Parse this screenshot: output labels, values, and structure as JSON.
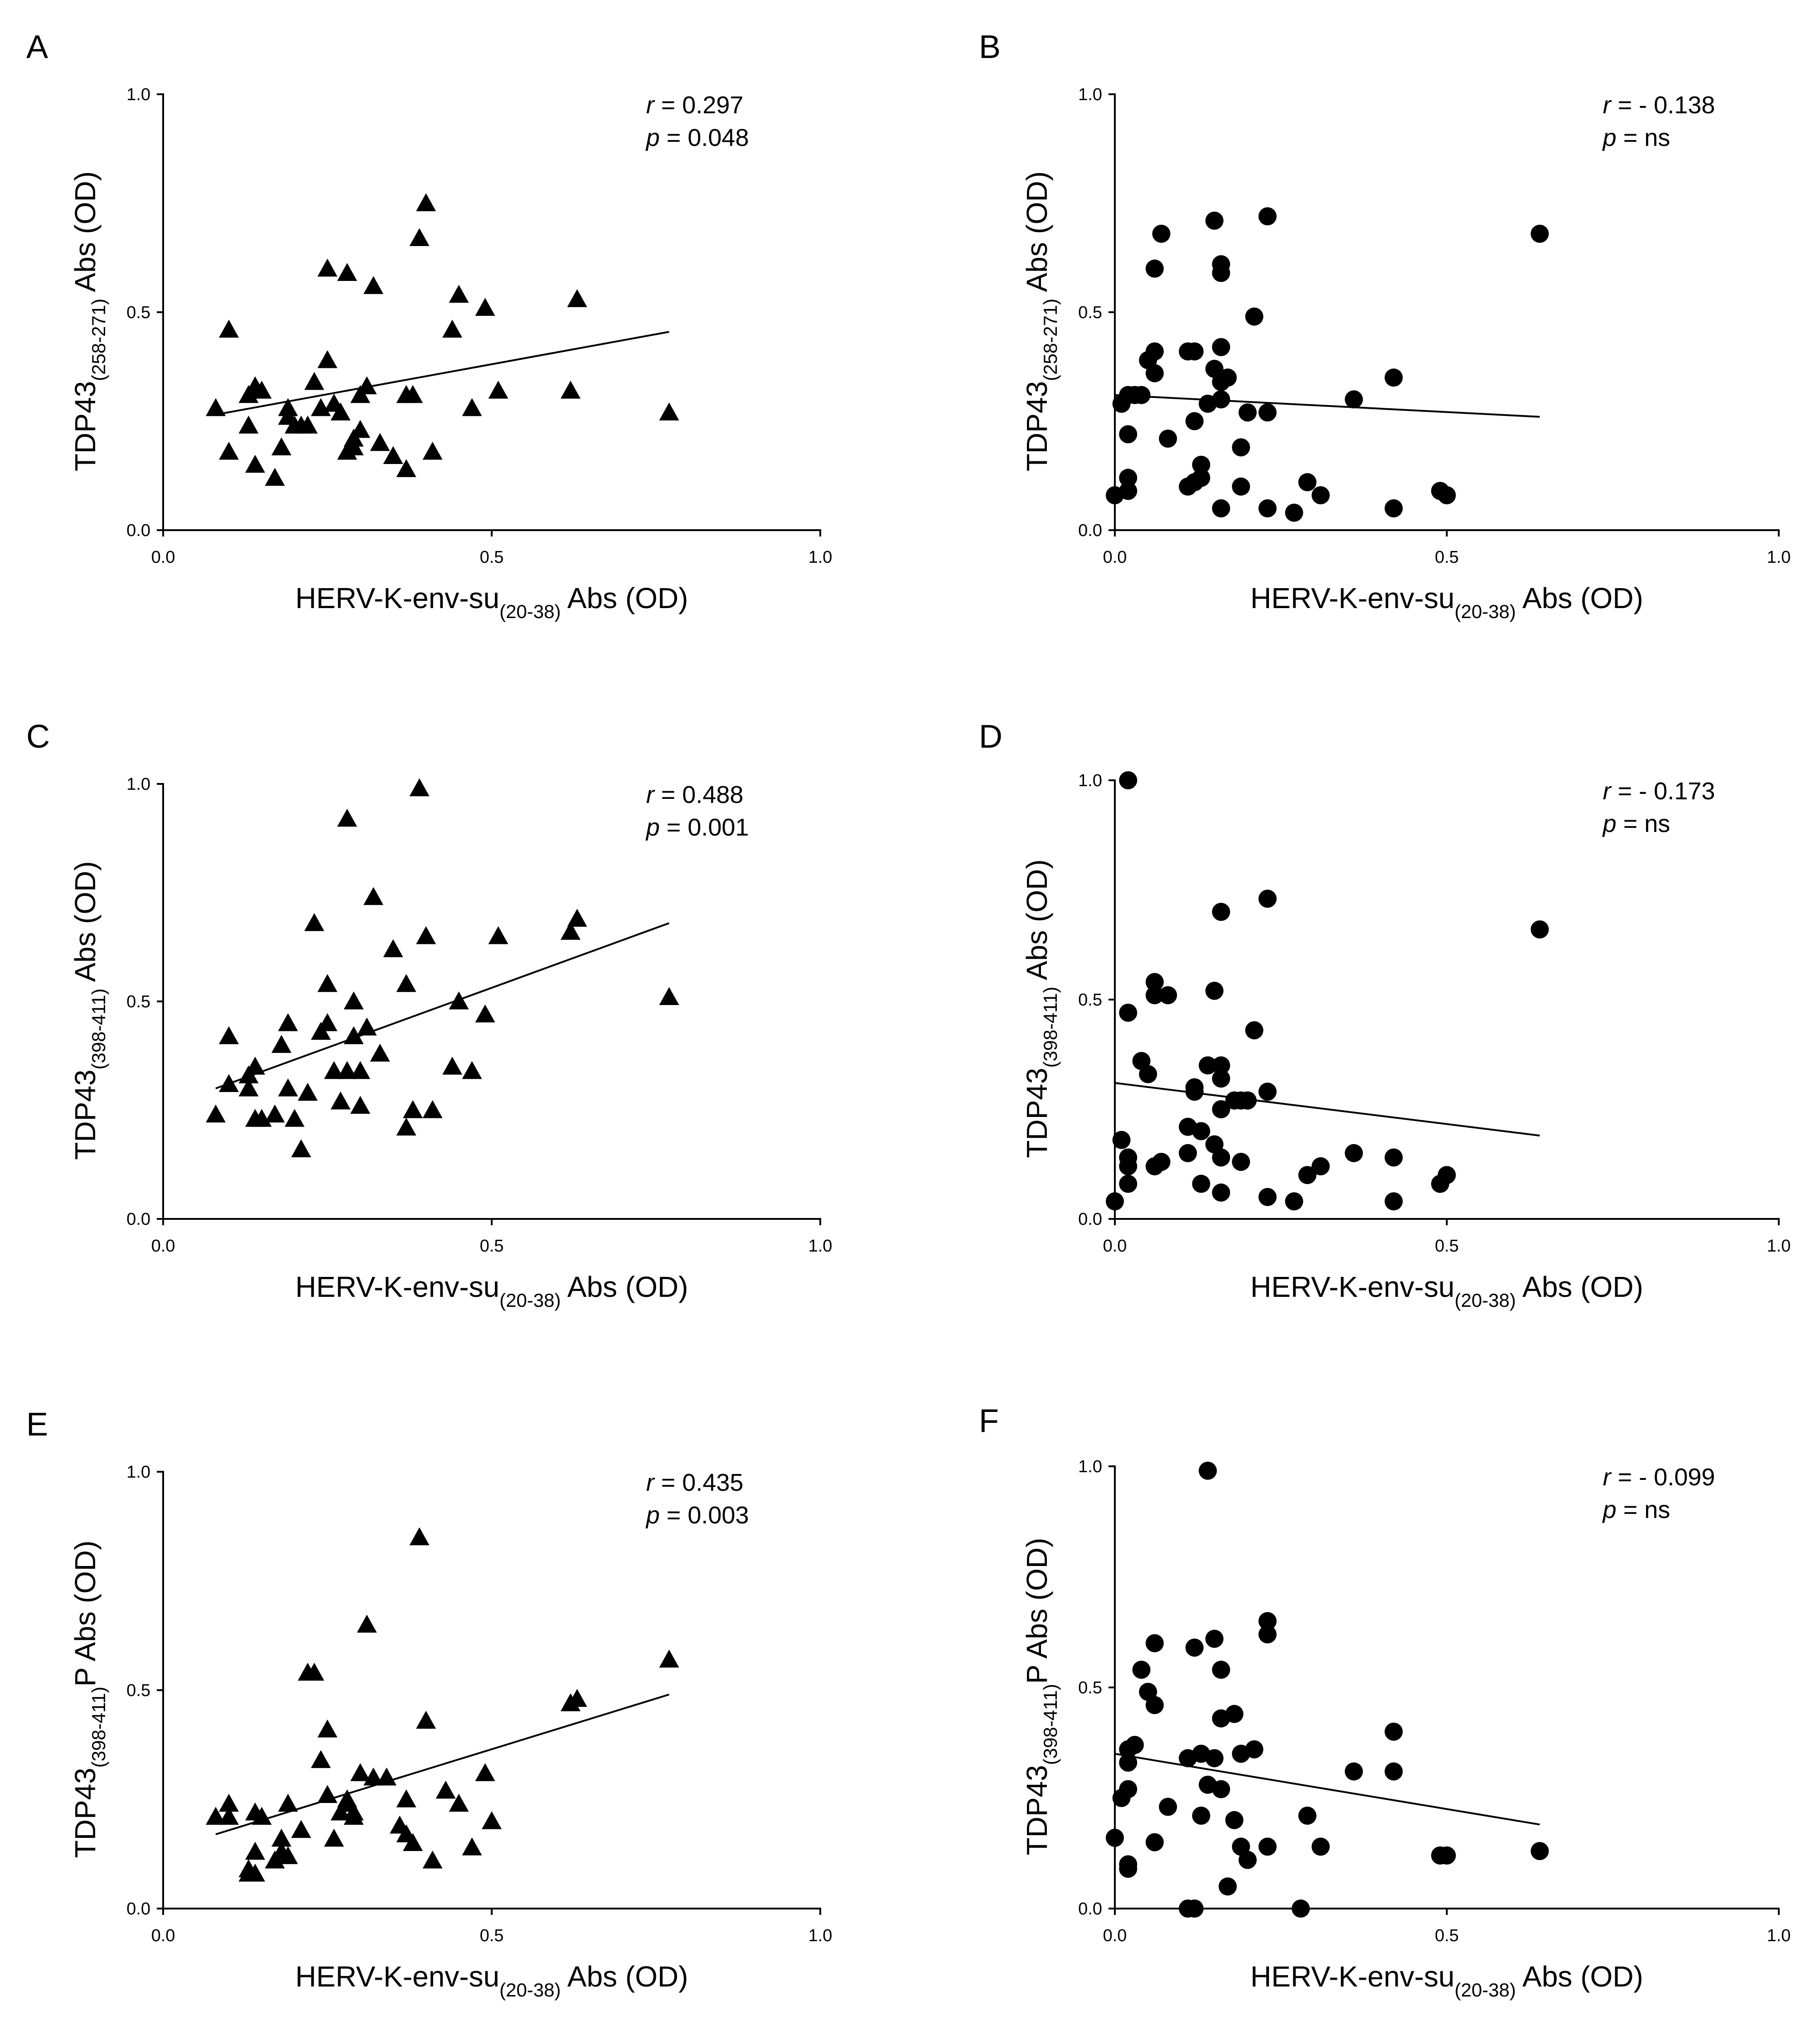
{
  "figure": {
    "x_label_main": "HERV-K-env-su",
    "x_label_sub": "(20-38)",
    "x_label_tail": " Abs (OD)"
  },
  "chart_data": [
    {
      "panel": "A",
      "type": "scatter",
      "marker": "triangle",
      "xlim": [
        0,
        1
      ],
      "ylim": [
        0,
        1
      ],
      "xticks": [
        "0.0",
        "0.5",
        "1.0"
      ],
      "yticks": [
        "0.0",
        "0.5",
        "1.0"
      ],
      "y_label_main": "TDP43",
      "y_label_sub": "(258-271)",
      "y_label_tail": " Abs (OD)",
      "stat_r_label": "r",
      "stat_r_value": "0.297",
      "stat_p_label": "p",
      "stat_p_value": "0.048",
      "fit": [
        [
          0.08,
          0.265
        ],
        [
          0.77,
          0.455
        ]
      ],
      "x": [
        0.08,
        0.1,
        0.1,
        0.13,
        0.13,
        0.14,
        0.14,
        0.15,
        0.17,
        0.18,
        0.19,
        0.19,
        0.2,
        0.21,
        0.22,
        0.23,
        0.24,
        0.25,
        0.25,
        0.26,
        0.27,
        0.28,
        0.28,
        0.29,
        0.29,
        0.3,
        0.3,
        0.31,
        0.32,
        0.33,
        0.35,
        0.37,
        0.37,
        0.38,
        0.39,
        0.4,
        0.41,
        0.44,
        0.45,
        0.47,
        0.49,
        0.51,
        0.62,
        0.63,
        0.77
      ],
      "y": [
        0.28,
        0.46,
        0.18,
        0.31,
        0.24,
        0.33,
        0.15,
        0.32,
        0.12,
        0.19,
        0.26,
        0.28,
        0.24,
        0.24,
        0.24,
        0.34,
        0.28,
        0.6,
        0.39,
        0.29,
        0.27,
        0.18,
        0.59,
        0.19,
        0.21,
        0.23,
        0.31,
        0.33,
        0.56,
        0.2,
        0.17,
        0.31,
        0.14,
        0.31,
        0.67,
        0.75,
        0.18,
        0.46,
        0.54,
        0.28,
        0.51,
        0.32,
        0.32,
        0.53,
        0.27
      ]
    },
    {
      "panel": "B",
      "type": "scatter",
      "marker": "circle",
      "xlim": [
        0,
        1
      ],
      "ylim": [
        0,
        1
      ],
      "xticks": [
        "0.0",
        "0.5",
        "1.0"
      ],
      "yticks": [
        "0.0",
        "0.5",
        "1.0"
      ],
      "y_label_main": "TDP43",
      "y_label_sub": "(258-271)",
      "y_label_tail": " Abs (OD)",
      "stat_r_label": "r",
      "stat_r_value": "- 0.138",
      "stat_p_label": "p",
      "stat_p_value": "ns",
      "fit": [
        [
          0.0,
          0.31
        ],
        [
          0.64,
          0.26
        ]
      ],
      "x": [
        0.0,
        0.01,
        0.02,
        0.02,
        0.02,
        0.02,
        0.03,
        0.04,
        0.05,
        0.06,
        0.06,
        0.06,
        0.07,
        0.08,
        0.11,
        0.11,
        0.12,
        0.12,
        0.12,
        0.13,
        0.13,
        0.14,
        0.15,
        0.15,
        0.16,
        0.16,
        0.16,
        0.16,
        0.16,
        0.16,
        0.17,
        0.19,
        0.19,
        0.2,
        0.21,
        0.23,
        0.23,
        0.23,
        0.27,
        0.29,
        0.31,
        0.36,
        0.42,
        0.42,
        0.49,
        0.5,
        0.64
      ],
      "y": [
        0.08,
        0.29,
        0.31,
        0.12,
        0.09,
        0.22,
        0.31,
        0.31,
        0.39,
        0.6,
        0.36,
        0.41,
        0.68,
        0.21,
        0.1,
        0.41,
        0.41,
        0.11,
        0.25,
        0.12,
        0.15,
        0.29,
        0.71,
        0.37,
        0.42,
        0.34,
        0.61,
        0.59,
        0.05,
        0.3,
        0.35,
        0.19,
        0.1,
        0.27,
        0.49,
        0.72,
        0.27,
        0.05,
        0.04,
        0.11,
        0.08,
        0.3,
        0.05,
        0.35,
        0.09,
        0.08,
        0.68
      ]
    },
    {
      "panel": "C",
      "type": "scatter",
      "marker": "triangle",
      "xlim": [
        0,
        1
      ],
      "ylim": [
        0,
        1
      ],
      "xticks": [
        "0.0",
        "0.5",
        "1.0"
      ],
      "yticks": [
        "0.0",
        "0.5",
        "1.0"
      ],
      "y_label_main": "TDP43",
      "y_label_sub": "(398-411)",
      "y_label_tail": " Abs (OD)",
      "stat_r_label": "r",
      "stat_r_value": "0.488",
      "stat_p_label": "p",
      "stat_p_value": "0.001",
      "fit": [
        [
          0.08,
          0.3
        ],
        [
          0.77,
          0.68
        ]
      ],
      "x": [
        0.08,
        0.1,
        0.1,
        0.13,
        0.13,
        0.14,
        0.14,
        0.15,
        0.17,
        0.18,
        0.19,
        0.19,
        0.2,
        0.21,
        0.22,
        0.23,
        0.24,
        0.25,
        0.25,
        0.26,
        0.27,
        0.28,
        0.28,
        0.29,
        0.29,
        0.3,
        0.3,
        0.31,
        0.32,
        0.33,
        0.35,
        0.37,
        0.37,
        0.38,
        0.39,
        0.4,
        0.41,
        0.44,
        0.45,
        0.47,
        0.49,
        0.51,
        0.62,
        0.63,
        0.77
      ],
      "y": [
        0.24,
        0.31,
        0.42,
        0.33,
        0.3,
        0.23,
        0.35,
        0.23,
        0.24,
        0.4,
        0.45,
        0.3,
        0.23,
        0.16,
        0.29,
        0.68,
        0.43,
        0.54,
        0.45,
        0.34,
        0.27,
        0.34,
        0.92,
        0.42,
        0.5,
        0.26,
        0.34,
        0.44,
        0.74,
        0.38,
        0.62,
        0.54,
        0.21,
        0.25,
        0.99,
        0.65,
        0.25,
        0.35,
        0.5,
        0.34,
        0.47,
        0.65,
        0.66,
        0.69,
        0.51
      ]
    },
    {
      "panel": "D",
      "type": "scatter",
      "marker": "circle",
      "xlim": [
        0,
        1
      ],
      "ylim": [
        0,
        1
      ],
      "xticks": [
        "0.0",
        "0.5",
        "1.0"
      ],
      "yticks": [
        "0.0",
        "0.5",
        "1.0"
      ],
      "y_label_main": "TDP43",
      "y_label_sub": "(398-411)",
      "y_label_tail": " Abs (OD)",
      "stat_r_label": "r",
      "stat_r_value": "- 0.173",
      "stat_p_label": "p",
      "stat_p_value": "ns",
      "fit": [
        [
          0.0,
          0.31
        ],
        [
          0.64,
          0.19
        ]
      ],
      "x": [
        0.0,
        0.01,
        0.02,
        0.02,
        0.02,
        0.02,
        0.02,
        0.04,
        0.05,
        0.06,
        0.06,
        0.06,
        0.07,
        0.08,
        0.11,
        0.11,
        0.12,
        0.12,
        0.13,
        0.13,
        0.14,
        0.15,
        0.15,
        0.16,
        0.16,
        0.16,
        0.16,
        0.16,
        0.16,
        0.18,
        0.19,
        0.19,
        0.2,
        0.21,
        0.23,
        0.23,
        0.23,
        0.27,
        0.29,
        0.31,
        0.36,
        0.42,
        0.42,
        0.49,
        0.5,
        0.64
      ],
      "y": [
        0.04,
        0.18,
        1.0,
        0.47,
        0.14,
        0.12,
        0.08,
        0.36,
        0.33,
        0.51,
        0.54,
        0.12,
        0.13,
        0.51,
        0.15,
        0.21,
        0.3,
        0.29,
        0.2,
        0.08,
        0.35,
        0.17,
        0.52,
        0.7,
        0.35,
        0.32,
        0.25,
        0.14,
        0.06,
        0.27,
        0.27,
        0.13,
        0.27,
        0.43,
        0.73,
        0.29,
        0.05,
        0.04,
        0.1,
        0.12,
        0.15,
        0.04,
        0.14,
        0.08,
        0.1,
        0.66
      ]
    },
    {
      "panel": "E",
      "type": "scatter",
      "marker": "triangle",
      "xlim": [
        0,
        1
      ],
      "ylim": [
        0,
        1
      ],
      "xticks": [
        "0.0",
        "0.5",
        "1.0"
      ],
      "yticks": [
        "0.0",
        "0.5",
        "1.0"
      ],
      "y_label_main": "TDP43",
      "y_label_sub": "(398-411)",
      "y_label_tail": "P Abs (OD)",
      "stat_r_label": "r",
      "stat_r_value": "0.435",
      "stat_p_label": "p",
      "stat_p_value": "0.003",
      "fit": [
        [
          0.08,
          0.17
        ],
        [
          0.77,
          0.49
        ]
      ],
      "x": [
        0.08,
        0.1,
        0.1,
        0.13,
        0.13,
        0.14,
        0.14,
        0.14,
        0.15,
        0.17,
        0.18,
        0.18,
        0.19,
        0.19,
        0.21,
        0.22,
        0.23,
        0.24,
        0.25,
        0.25,
        0.26,
        0.27,
        0.28,
        0.28,
        0.29,
        0.29,
        0.3,
        0.31,
        0.32,
        0.34,
        0.36,
        0.37,
        0.37,
        0.38,
        0.39,
        0.4,
        0.41,
        0.43,
        0.45,
        0.47,
        0.49,
        0.5,
        0.62,
        0.63,
        0.77
      ],
      "y": [
        0.21,
        0.21,
        0.24,
        0.09,
        0.08,
        0.08,
        0.13,
        0.22,
        0.21,
        0.11,
        0.13,
        0.16,
        0.24,
        0.12,
        0.18,
        0.54,
        0.54,
        0.34,
        0.41,
        0.26,
        0.16,
        0.22,
        0.24,
        0.25,
        0.21,
        0.22,
        0.31,
        0.65,
        0.3,
        0.3,
        0.19,
        0.25,
        0.17,
        0.15,
        0.85,
        0.43,
        0.11,
        0.27,
        0.24,
        0.14,
        0.31,
        0.2,
        0.47,
        0.48,
        0.57
      ]
    },
    {
      "panel": "F",
      "type": "scatter",
      "marker": "circle",
      "xlim": [
        0,
        1
      ],
      "ylim": [
        0,
        1
      ],
      "xticks": [
        "0.0",
        "0.5",
        "1.0"
      ],
      "yticks": [
        "0.0",
        "0.5",
        "1.0"
      ],
      "y_label_main": "TDP43",
      "y_label_sub": "(398-411)",
      "y_label_tail": "P Abs (OD)",
      "stat_r_label": "r",
      "stat_r_value": "- 0.099",
      "stat_p_label": "p",
      "stat_p_value": "ns",
      "fit": [
        [
          0.0,
          0.35
        ],
        [
          0.64,
          0.19
        ]
      ],
      "x": [
        0.0,
        0.01,
        0.02,
        0.02,
        0.02,
        0.02,
        0.02,
        0.03,
        0.04,
        0.05,
        0.06,
        0.06,
        0.06,
        0.08,
        0.11,
        0.11,
        0.12,
        0.12,
        0.13,
        0.13,
        0.14,
        0.14,
        0.15,
        0.15,
        0.16,
        0.16,
        0.16,
        0.17,
        0.18,
        0.18,
        0.19,
        0.19,
        0.2,
        0.21,
        0.23,
        0.23,
        0.23,
        0.28,
        0.29,
        0.31,
        0.36,
        0.42,
        0.42,
        0.49,
        0.5,
        0.64
      ],
      "y": [
        0.16,
        0.25,
        0.36,
        0.33,
        0.1,
        0.09,
        0.27,
        0.37,
        0.54,
        0.49,
        0.6,
        0.46,
        0.15,
        0.23,
        0.34,
        0.0,
        0.59,
        0.0,
        0.21,
        0.35,
        0.99,
        0.28,
        0.61,
        0.34,
        0.27,
        0.54,
        0.43,
        0.05,
        0.2,
        0.44,
        0.14,
        0.35,
        0.11,
        0.36,
        0.65,
        0.62,
        0.14,
        0.0,
        0.21,
        0.14,
        0.31,
        0.31,
        0.4,
        0.12,
        0.12,
        0.13
      ]
    }
  ]
}
